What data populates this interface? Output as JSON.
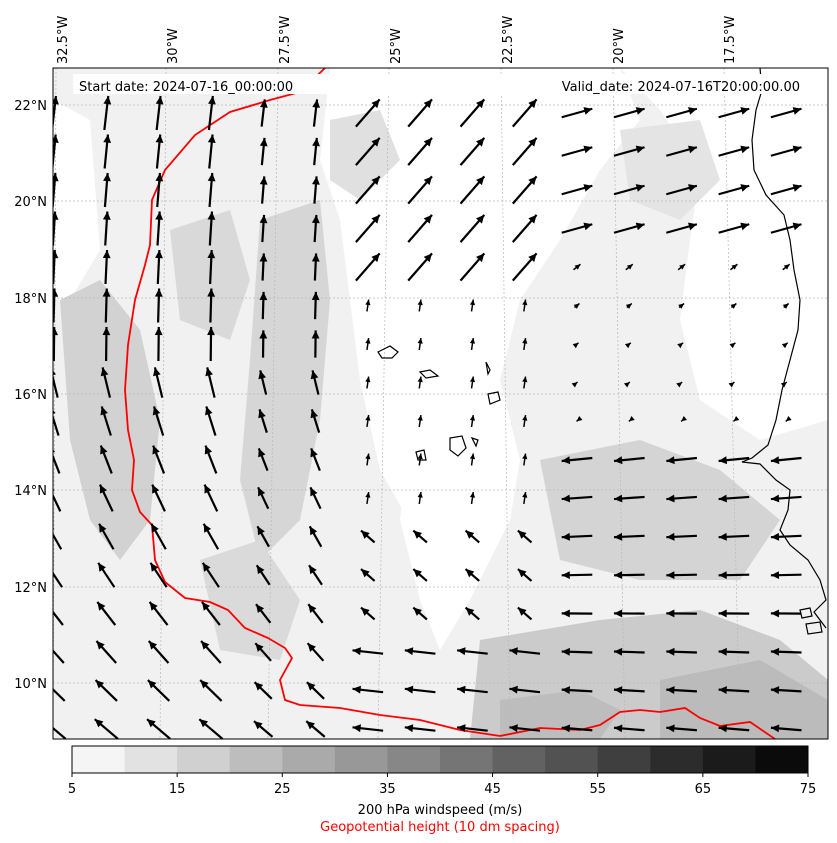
{
  "map": {
    "start_date": "Start date: 2024-07-16_00:00:00",
    "valid_date": "Valid_date: 2024-07-16T20:00:00.00",
    "lon_labels": [
      "32.5°W",
      "30°W",
      "27.5°W",
      "25°W",
      "22.5°W",
      "20°W",
      "17.5°W"
    ],
    "lat_labels": [
      "22°N",
      "20°N",
      "18°N",
      "16°N",
      "14°N",
      "12°N",
      "10°N"
    ],
    "lon_range": [
      -32.5,
      -15.8
    ],
    "lat_range": [
      8.9,
      22.8
    ],
    "contour_color": "#ff0000",
    "coastline_color": "#000000"
  },
  "colorbar": {
    "ticks": [
      "5",
      "15",
      "25",
      "35",
      "45",
      "55",
      "65",
      "75"
    ],
    "levels": [
      5,
      10,
      15,
      20,
      25,
      30,
      35,
      40,
      45,
      50,
      55,
      60,
      65,
      70,
      75
    ],
    "colors": [
      "#f5f5f5",
      "#e2e2e2",
      "#d0d0d0",
      "#bdbdbd",
      "#aaaaaa",
      "#989898",
      "#878787",
      "#757575",
      "#626262",
      "#525252",
      "#3f3f3f",
      "#2c2c2c",
      "#1b1b1b",
      "#0b0b0b"
    ],
    "label": "200 hPa windspeed (m/s)",
    "sublabel": "Geopotential height (10 dm spacing)",
    "sublabel_color": "#ff0000"
  }
}
